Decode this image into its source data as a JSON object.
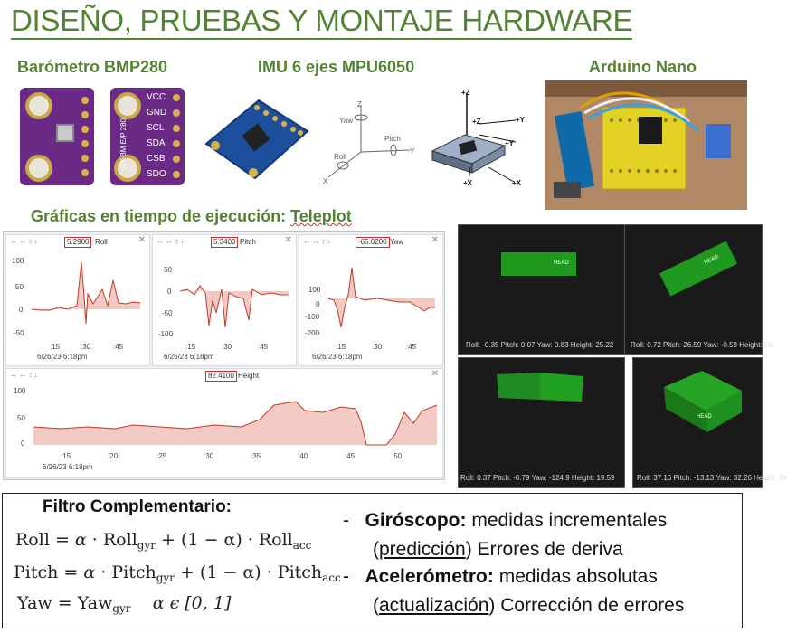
{
  "title": "DISEÑO, PRUEBAS Y MONTAJE HARDWARE",
  "sections": {
    "barometer": "Barómetro BMP280",
    "imu": "IMU 6 ejes MPU6050",
    "arduino": "Arduino Nano",
    "plots": "Gráficas en tiempo de ejecución: ",
    "plots_link": "Teleplot"
  },
  "bmp280": {
    "pins": [
      "VCC",
      "GND",
      "SCL",
      "SDA",
      "CSB",
      "SDO"
    ],
    "board_text": "GY-BM E/P 280"
  },
  "imu_diagram": {
    "labels": [
      "Yaw",
      "Z",
      "Pitch",
      "Y",
      "Roll",
      "X"
    ],
    "chip_labels": [
      "+Z",
      "+Y",
      "+X",
      "+Z",
      "+Y",
      "+X"
    ]
  },
  "teleplot": {
    "roll": {
      "name": "Roll",
      "value": "5.2900",
      "yticks": [
        "100",
        "50",
        "0",
        "-50"
      ],
      "xticks": [
        ":15",
        ":30",
        ":45"
      ],
      "date": "6/26/23 6:18pm"
    },
    "pitch": {
      "name": "Pitch",
      "value": "5.3400",
      "yticks": [
        "50",
        "0",
        "-50",
        "-100"
      ],
      "xticks": [
        ":15",
        ":30",
        ":45"
      ]
    },
    "yaw": {
      "name": "Yaw",
      "value": "-65.0200",
      "yticks": [
        "100",
        "0",
        "-100",
        "-200"
      ],
      "xticks": [
        ":15",
        ":30",
        ":45"
      ],
      "date": "6/26/23 6:18pm"
    },
    "height": {
      "name": "Height",
      "value": "82.4100",
      "yticks": [
        "100",
        "50",
        "0"
      ],
      "xticks": [
        ":15",
        ":20",
        ":25",
        ":30",
        ":35",
        ":40",
        ":45",
        ":50"
      ],
      "date": "6/26/23 6:18pm"
    }
  },
  "sim": [
    {
      "label": "HEAD",
      "readout": "Roll: -0.35   Pitch: 0.07   Yaw: 0.83   Height: 25.22"
    },
    {
      "label": "HEAD",
      "readout": "Roll: 0.72   Pitch: 26.59   Yaw: -0.59   Height: 29."
    },
    {
      "label": "",
      "readout": "Roll: 0.37   Pitch: -0.79   Yaw: -124.9   Height: 19.59"
    },
    {
      "label": "HEAD",
      "readout": "Roll: 37.16   Pitch: -13.13   Yaw: 32.26   Height: 78"
    }
  ],
  "filter": {
    "title": "Filtro Complementario:",
    "roll_eq": {
      "lhs": "Roll",
      "a": "α",
      "t1": "Roll",
      "s1": "gyr",
      "t2": "(1 − α)",
      "t3": "Roll",
      "s3": "acc"
    },
    "pitch_eq": {
      "lhs": "Pitch",
      "a": "α",
      "t1": "Pitch",
      "s1": "gyr",
      "t2": "(1 − α)",
      "t3": "Pitch",
      "s3": "acc"
    },
    "yaw_eq": {
      "lhs": "Yaw",
      "t1": "Yaw",
      "s1": "gyr",
      "range": "α ϵ [0, 1]"
    },
    "bullets": [
      {
        "bold": "Giróscopo:",
        "text": " medidas incrementales",
        "line2_u": "predicción",
        "line2_rest": " Errores de deriva"
      },
      {
        "bold": "Acelerómetro:",
        "text": " medidas absolutas",
        "line2_u": "actualización",
        "line2_rest": " Corrección de errores"
      }
    ]
  },
  "colors": {
    "accent": "#548235",
    "plot_line": "#c0392b",
    "plot_fill": "#f3c9c4",
    "sim_cube": "#1f9a1f",
    "board": "#6b2a86"
  }
}
